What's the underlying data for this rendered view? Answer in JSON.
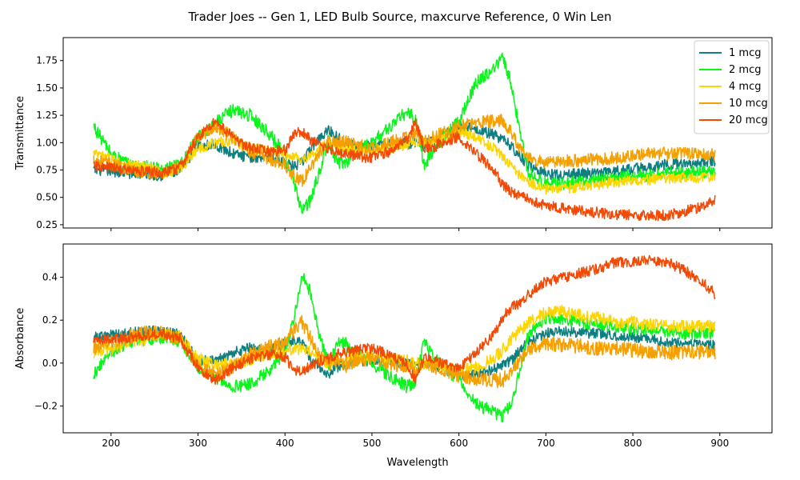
{
  "figure": {
    "title": "Trader Joes -- Gen 1, LED Bulb Source, maxcurve Reference, 0 Win Len"
  },
  "chart_data": [
    {
      "type": "line",
      "ylabel": "Transmittance",
      "xlabel": "",
      "xlim": [
        145,
        960
      ],
      "ylim": [
        0.22,
        1.96
      ],
      "xticks": [
        200,
        300,
        400,
        500,
        600,
        700,
        800,
        900
      ],
      "xticks_labeled": false,
      "yticks": [
        0.25,
        0.5,
        0.75,
        1.0,
        1.25,
        1.5,
        1.75
      ],
      "ytick_labels": [
        "0.25",
        "0.50",
        "0.75",
        "1.00",
        "1.25",
        "1.50",
        "1.75"
      ],
      "legend": "top-right",
      "grid": false,
      "x": [
        180,
        200,
        220,
        240,
        260,
        280,
        300,
        320,
        340,
        360,
        380,
        400,
        410,
        420,
        430,
        440,
        450,
        460,
        470,
        480,
        500,
        520,
        540,
        550,
        560,
        570,
        580,
        600,
        620,
        640,
        650,
        660,
        670,
        680,
        700,
        720,
        740,
        760,
        780,
        800,
        820,
        840,
        860,
        880,
        895
      ],
      "series": [
        {
          "name": "1 mcg",
          "color": "#0d7f80",
          "noise": 0.05,
          "values": [
            0.75,
            0.74,
            0.72,
            0.71,
            0.7,
            0.74,
            0.98,
            0.98,
            0.9,
            0.86,
            0.88,
            0.82,
            0.78,
            0.82,
            0.95,
            1.05,
            1.12,
            1.05,
            1.0,
            0.97,
            0.97,
            0.98,
            0.99,
            1.0,
            0.97,
            1.02,
            1.05,
            1.16,
            1.13,
            1.07,
            1.03,
            0.97,
            0.88,
            0.79,
            0.72,
            0.7,
            0.72,
            0.72,
            0.74,
            0.76,
            0.78,
            0.8,
            0.81,
            0.82,
            0.83
          ]
        },
        {
          "name": "2 mcg",
          "color": "#0af51c",
          "noise": 0.06,
          "values": [
            1.15,
            0.9,
            0.8,
            0.78,
            0.75,
            0.8,
            1.05,
            1.18,
            1.3,
            1.25,
            1.1,
            0.9,
            0.62,
            0.38,
            0.48,
            0.75,
            1.02,
            0.82,
            0.82,
            0.9,
            1.0,
            1.14,
            1.28,
            1.22,
            0.8,
            0.92,
            1.03,
            1.2,
            1.55,
            1.68,
            1.78,
            1.55,
            1.1,
            0.72,
            0.62,
            0.62,
            0.64,
            0.66,
            0.68,
            0.7,
            0.7,
            0.72,
            0.72,
            0.73,
            0.73
          ]
        },
        {
          "name": "4 mcg",
          "color": "#ffd500",
          "noise": 0.05,
          "values": [
            0.9,
            0.85,
            0.8,
            0.78,
            0.72,
            0.76,
            0.95,
            1.0,
            1.02,
            0.95,
            0.92,
            0.9,
            0.88,
            0.85,
            0.88,
            0.95,
            1.0,
            0.98,
            0.95,
            0.93,
            0.93,
            0.95,
            0.98,
            1.0,
            1.0,
            1.02,
            1.03,
            1.1,
            1.05,
            0.95,
            0.88,
            0.78,
            0.7,
            0.64,
            0.58,
            0.58,
            0.6,
            0.62,
            0.64,
            0.65,
            0.66,
            0.67,
            0.68,
            0.68,
            0.68
          ]
        },
        {
          "name": "10 mcg",
          "color": "#f5a000",
          "noise": 0.06,
          "values": [
            0.85,
            0.8,
            0.76,
            0.73,
            0.72,
            0.78,
            1.05,
            1.15,
            1.05,
            0.92,
            0.86,
            0.8,
            0.7,
            0.65,
            0.78,
            0.92,
            1.0,
            1.0,
            1.02,
            0.98,
            0.95,
            1.0,
            1.05,
            1.08,
            1.0,
            1.05,
            1.08,
            1.15,
            1.18,
            1.2,
            1.2,
            1.1,
            0.95,
            0.85,
            0.82,
            0.83,
            0.84,
            0.85,
            0.86,
            0.88,
            0.9,
            0.9,
            0.9,
            0.9,
            0.9
          ]
        },
        {
          "name": "20 mcg",
          "color": "#f24a05",
          "noise": 0.05,
          "values": [
            0.78,
            0.77,
            0.75,
            0.74,
            0.72,
            0.78,
            1.05,
            1.2,
            1.05,
            0.95,
            0.92,
            0.93,
            1.08,
            1.1,
            1.02,
            0.98,
            0.95,
            0.92,
            0.9,
            0.88,
            0.86,
            0.92,
            1.02,
            1.2,
            0.96,
            0.95,
            1.0,
            1.06,
            0.9,
            0.75,
            0.62,
            0.55,
            0.52,
            0.48,
            0.42,
            0.4,
            0.38,
            0.36,
            0.34,
            0.34,
            0.33,
            0.34,
            0.37,
            0.42,
            0.48
          ]
        }
      ]
    },
    {
      "type": "line",
      "ylabel": "Absorbance",
      "xlabel": "Wavelength",
      "xlim": [
        145,
        960
      ],
      "ylim": [
        -0.325,
        0.555
      ],
      "xticks": [
        200,
        300,
        400,
        500,
        600,
        700,
        800,
        900
      ],
      "xtick_labels": [
        "200",
        "300",
        "400",
        "500",
        "600",
        "700",
        "800",
        "900"
      ],
      "yticks": [
        -0.2,
        0.0,
        0.2,
        0.4
      ],
      "ytick_labels": [
        "−0.2",
        "0.0",
        "0.2",
        "0.4"
      ],
      "grid": false,
      "x": [
        180,
        200,
        220,
        240,
        260,
        280,
        300,
        320,
        340,
        360,
        380,
        400,
        410,
        420,
        430,
        440,
        450,
        460,
        470,
        480,
        500,
        520,
        540,
        550,
        560,
        570,
        580,
        600,
        620,
        640,
        650,
        660,
        670,
        680,
        700,
        720,
        740,
        760,
        780,
        800,
        820,
        840,
        860,
        880,
        895
      ],
      "series": [
        {
          "name": "1 mcg",
          "color": "#0d7f80",
          "noise": 0.025,
          "values": [
            0.12,
            0.13,
            0.14,
            0.15,
            0.15,
            0.13,
            0.01,
            0.01,
            0.05,
            0.07,
            0.06,
            0.09,
            0.11,
            0.09,
            0.02,
            -0.02,
            -0.05,
            -0.02,
            0.0,
            0.01,
            0.01,
            0.01,
            0.0,
            0.0,
            0.01,
            -0.01,
            -0.02,
            -0.06,
            -0.05,
            -0.03,
            -0.01,
            0.01,
            0.06,
            0.1,
            0.14,
            0.15,
            0.14,
            0.14,
            0.13,
            0.12,
            0.11,
            0.1,
            0.09,
            0.09,
            0.08
          ]
        },
        {
          "name": "2 mcg",
          "color": "#0af51c",
          "noise": 0.03,
          "values": [
            -0.05,
            0.05,
            0.1,
            0.11,
            0.12,
            0.1,
            -0.02,
            -0.07,
            -0.11,
            -0.1,
            -0.04,
            0.05,
            0.21,
            0.42,
            0.32,
            0.12,
            -0.01,
            0.09,
            0.09,
            0.05,
            0.0,
            -0.06,
            -0.11,
            -0.09,
            0.1,
            0.04,
            -0.01,
            -0.08,
            -0.19,
            -0.23,
            -0.25,
            -0.19,
            -0.04,
            0.14,
            0.21,
            0.21,
            0.19,
            0.18,
            0.17,
            0.16,
            0.16,
            0.15,
            0.14,
            0.14,
            0.14
          ]
        },
        {
          "name": "4 mcg",
          "color": "#ffd500",
          "noise": 0.03,
          "values": [
            0.05,
            0.07,
            0.1,
            0.11,
            0.14,
            0.12,
            0.02,
            0.0,
            -0.01,
            0.02,
            0.04,
            0.05,
            0.06,
            0.07,
            0.06,
            0.02,
            0.0,
            0.01,
            0.02,
            0.03,
            0.03,
            0.02,
            0.01,
            0.0,
            0.0,
            -0.01,
            -0.01,
            -0.04,
            -0.02,
            0.02,
            0.06,
            0.11,
            0.15,
            0.19,
            0.24,
            0.24,
            0.22,
            0.21,
            0.19,
            0.19,
            0.18,
            0.17,
            0.17,
            0.17,
            0.17
          ]
        },
        {
          "name": "10 mcg",
          "color": "#f5a000",
          "noise": 0.035,
          "values": [
            0.07,
            0.1,
            0.12,
            0.14,
            0.14,
            0.11,
            -0.02,
            -0.06,
            -0.02,
            0.04,
            0.07,
            0.1,
            0.15,
            0.19,
            0.11,
            0.04,
            0.0,
            0.0,
            -0.01,
            0.01,
            0.02,
            0.0,
            -0.02,
            -0.03,
            0.0,
            -0.02,
            -0.03,
            -0.06,
            -0.07,
            -0.08,
            -0.08,
            -0.04,
            0.02,
            0.07,
            0.09,
            0.08,
            0.08,
            0.07,
            0.07,
            0.06,
            0.05,
            0.05,
            0.05,
            0.05,
            0.05
          ]
        },
        {
          "name": "20 mcg",
          "color": "#f24a05",
          "noise": 0.025,
          "values": [
            0.11,
            0.11,
            0.12,
            0.13,
            0.14,
            0.11,
            -0.02,
            -0.08,
            -0.02,
            0.02,
            0.04,
            0.03,
            -0.03,
            -0.04,
            -0.01,
            0.01,
            0.02,
            0.04,
            0.05,
            0.06,
            0.07,
            0.04,
            -0.01,
            -0.08,
            0.02,
            0.02,
            0.0,
            -0.03,
            0.05,
            0.13,
            0.21,
            0.26,
            0.28,
            0.32,
            0.38,
            0.4,
            0.42,
            0.44,
            0.47,
            0.47,
            0.48,
            0.47,
            0.43,
            0.38,
            0.32
          ]
        }
      ]
    }
  ]
}
